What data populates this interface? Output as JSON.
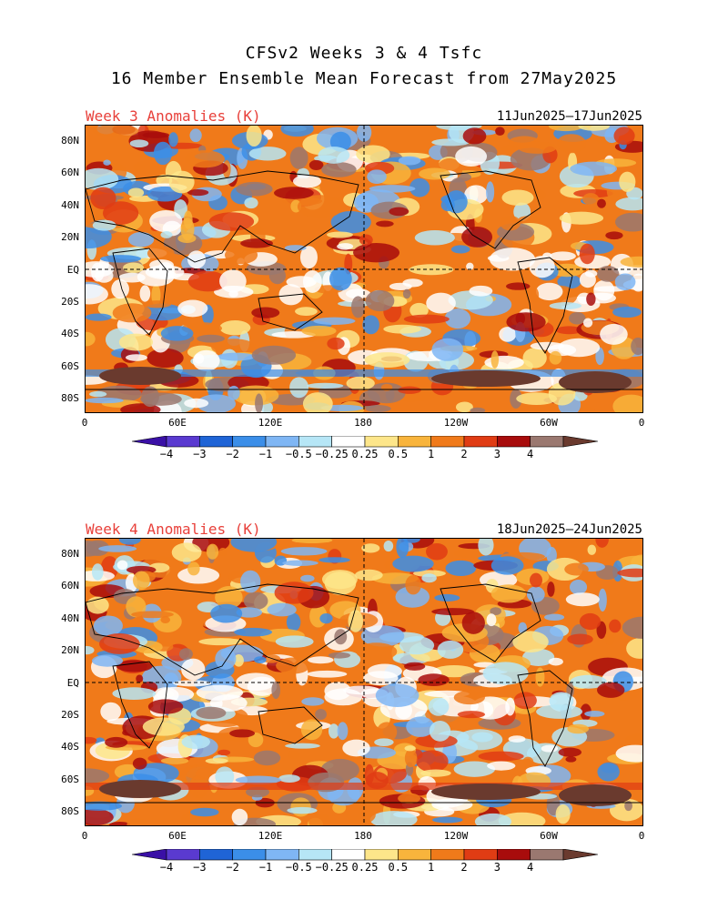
{
  "header": {
    "line1": "CFSv2 Weeks 3 & 4 Tsfc",
    "line2": "16 Member Ensemble Mean Forecast from 27May2025"
  },
  "panels": [
    {
      "label": "Week 3 Anomalies (K)",
      "dates": "11Jun2025—17Jun2025"
    },
    {
      "label": "Week 4 Anomalies (K)",
      "dates": "18Jun2025—24Jun2025"
    }
  ],
  "lat_labels": [
    "80N",
    "60N",
    "40N",
    "20N",
    "EQ",
    "20S",
    "40S",
    "60S",
    "80S"
  ],
  "lon_labels": [
    "0",
    "60E",
    "120E",
    "180",
    "120W",
    "60W",
    "0"
  ],
  "colorbar": {
    "labels": [
      "−4",
      "−3",
      "−2",
      "−1",
      "−0.5",
      "−0.25",
      "0.25",
      "0.5",
      "1",
      "2",
      "3",
      "4"
    ],
    "colors": [
      "#3a10a6",
      "#5a3ad0",
      "#1f64d6",
      "#3b8ee8",
      "#7fb6f4",
      "#b6e6f6",
      "#ffffff",
      "#fde68a",
      "#f8b43c",
      "#f07a1a",
      "#e03c14",
      "#a80c0c",
      "#9a7870",
      "#6a3a2e"
    ]
  }
}
